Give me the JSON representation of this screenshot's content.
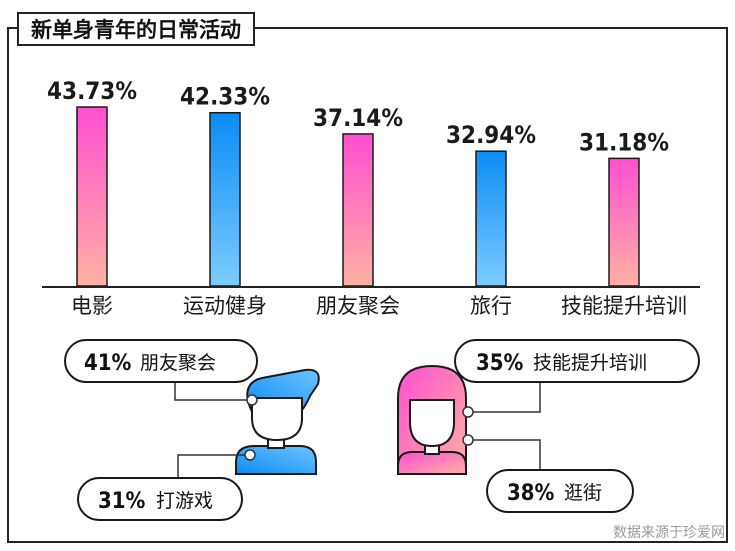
{
  "title": "新单身青年的日常活动",
  "source": "数据来源于珍爱网",
  "colors": {
    "pink_top": "#ff4fd0",
    "pink_bottom": "#ffb0a4",
    "blue_top": "#0c8cf5",
    "blue_bottom": "#6ec4ff"
  },
  "chart_data": {
    "type": "bar",
    "title": "新单身青年的日常活动",
    "categories": [
      "电影",
      "运动健身",
      "朋友聚会",
      "旅行",
      "技能提升培训"
    ],
    "values": [
      43.73,
      42.33,
      37.14,
      32.94,
      31.18
    ],
    "value_labels": [
      "43.73%",
      "42.33%",
      "37.14%",
      "32.94%",
      "31.18%"
    ],
    "bar_colors": [
      "pink",
      "blue",
      "pink",
      "blue",
      "pink"
    ],
    "unit": "%",
    "ylim": [
      0,
      43.73
    ],
    "grid": false
  },
  "male": {
    "items": [
      {
        "pct": "41%",
        "label": "朋友聚会"
      },
      {
        "pct": "31%",
        "label": "打游戏"
      }
    ]
  },
  "female": {
    "items": [
      {
        "pct": "35%",
        "label": "技能提升培训"
      },
      {
        "pct": "38%",
        "label": "逛街"
      }
    ]
  }
}
